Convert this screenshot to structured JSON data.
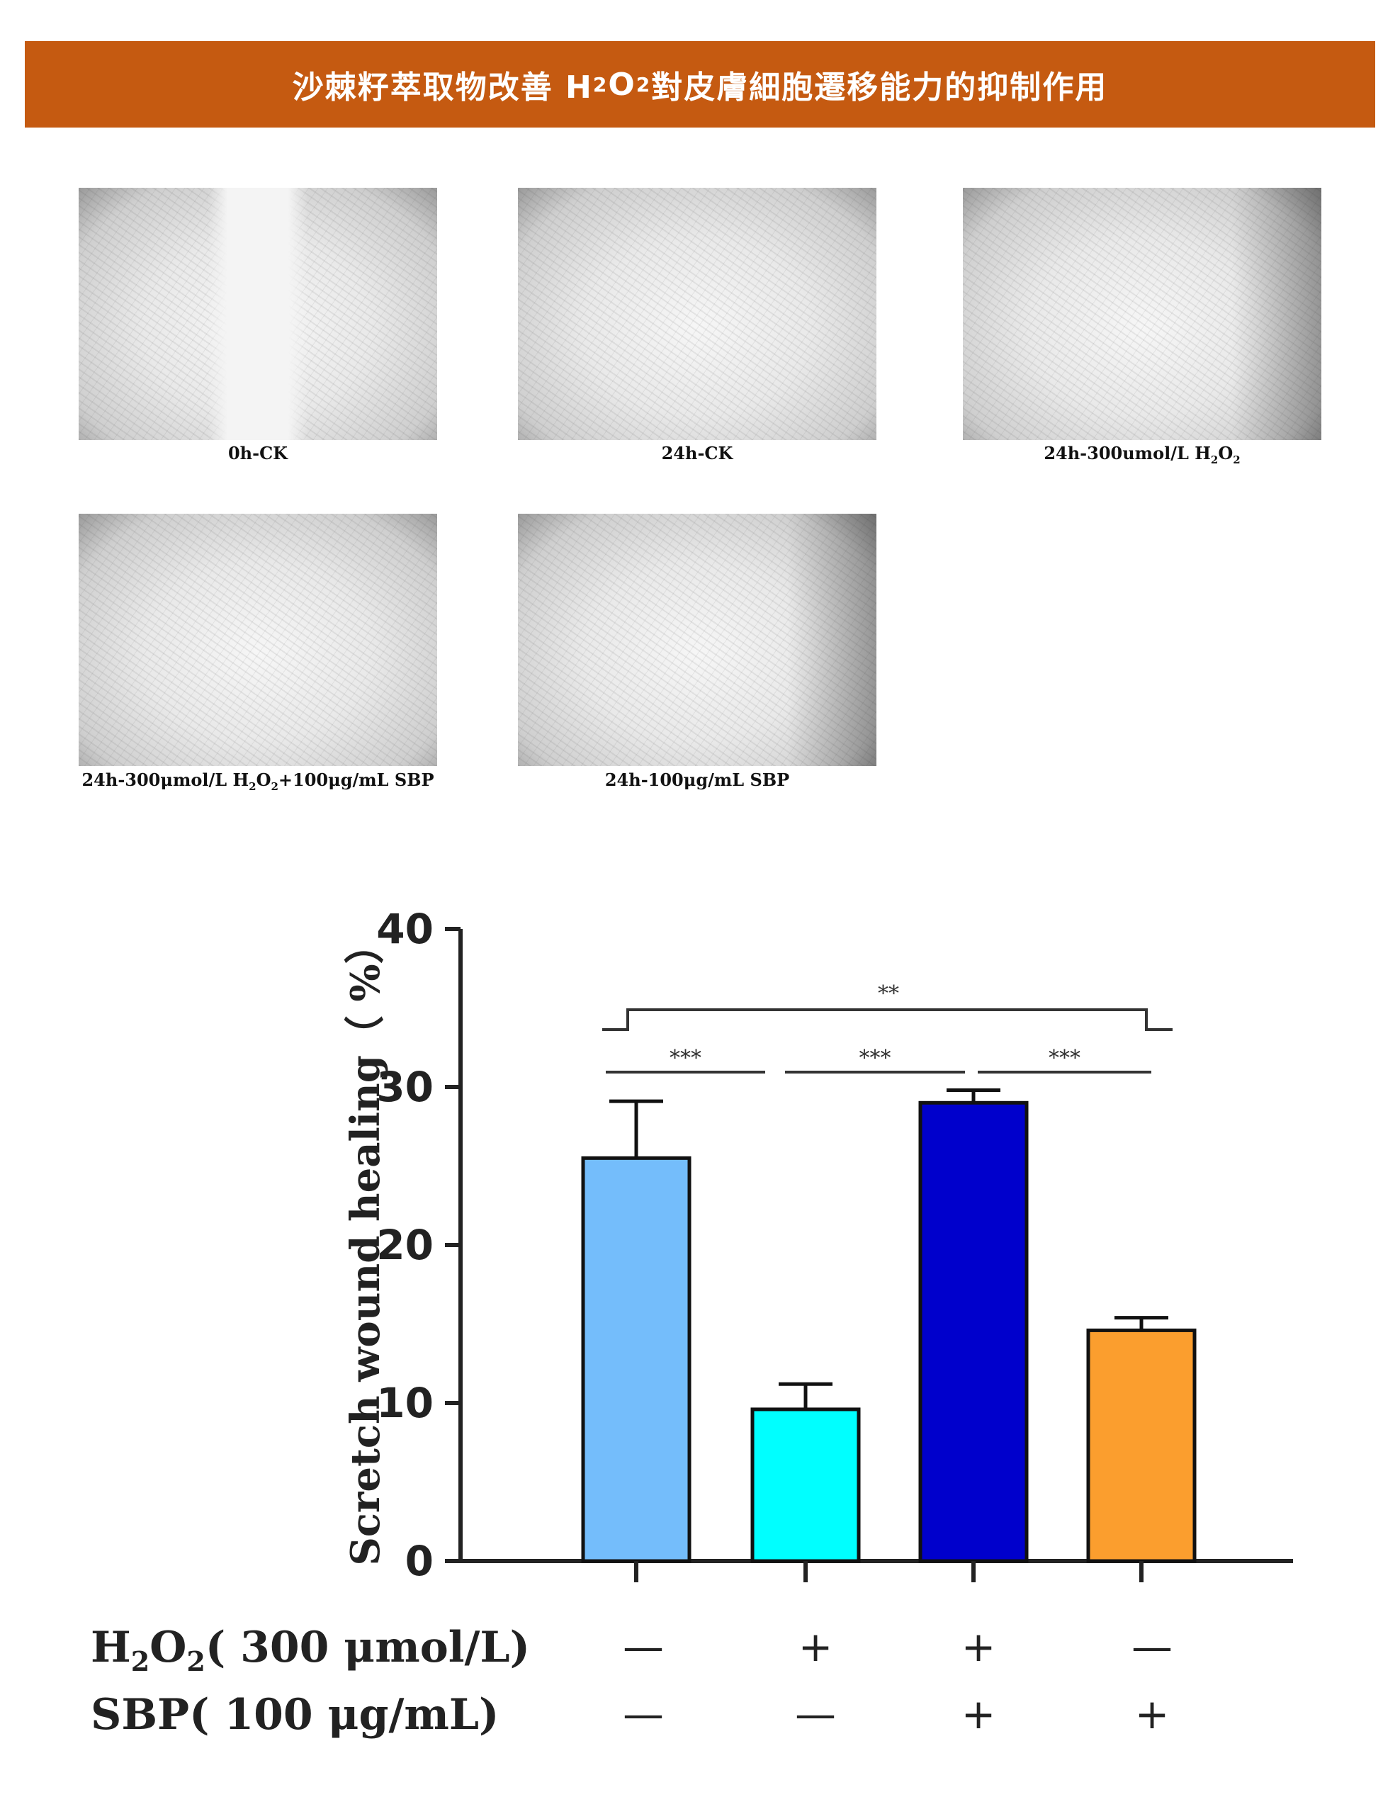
{
  "banner": {
    "prefix": "沙棘籽萃取物改善 H",
    "sub1": "2",
    "mid": "O",
    "sub2": "2",
    "suffix": " 對皮膚細胞遷移能力的抑制作用"
  },
  "panels": [
    {
      "caption": "0h-CK"
    },
    {
      "caption": "24h-CK"
    },
    {
      "caption_main": "24h-300umol/L H",
      "caption_sub1": "2",
      "caption_mid": "O",
      "caption_sub2": "2"
    },
    {
      "caption_main": "24h-300μmol/L H",
      "caption_sub1": "2",
      "caption_mid": "O",
      "caption_sub2": "2",
      "caption_tail": "+100μg/mL SBP"
    },
    {
      "caption": "24h-100μg/mL SBP"
    }
  ],
  "chart_data": {
    "type": "bar",
    "ylabel": "Scretch wound healing（ %）",
    "ylim": [
      0,
      40
    ],
    "yticks": [
      "0",
      "10",
      "20",
      "30",
      "40"
    ],
    "bars": [
      {
        "value": 25.5,
        "error": 3.6,
        "color": "#74bdfb"
      },
      {
        "value": 9.6,
        "error": 1.6,
        "color": "#00ffff"
      },
      {
        "value": 29.0,
        "error": 0.8,
        "color": "#0000cc"
      },
      {
        "value": 14.6,
        "error": 0.8,
        "color": "#fb9e2e"
      }
    ],
    "significance": [
      {
        "from": 0,
        "to": 1,
        "label": "***"
      },
      {
        "from": 1,
        "to": 2,
        "label": "***"
      },
      {
        "from": 2,
        "to": 3,
        "label": "***"
      },
      {
        "from": 0,
        "to": 3,
        "label": "**"
      }
    ],
    "conditions": [
      {
        "label_main": "H",
        "label_sub1": "2",
        "label_mid": "O",
        "label_sub2": "2",
        "label_tail": "( 300 μmol/L)",
        "values": [
          "—",
          "+",
          "+",
          "—"
        ]
      },
      {
        "label_main": "SBP( 100 μg/mL)",
        "values": [
          "—",
          "—",
          "+",
          "+"
        ]
      }
    ]
  }
}
